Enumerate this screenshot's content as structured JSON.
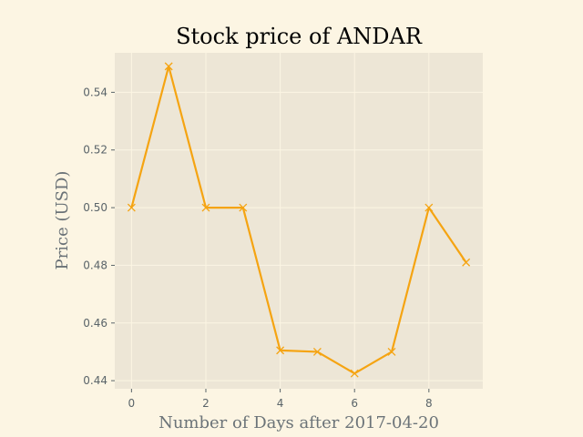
{
  "chart_data": {
    "type": "line",
    "title": "Stock price of ANDAR",
    "xlabel": "Number of Days after 2017-04-20",
    "ylabel": "Price (USD)",
    "x": [
      0,
      1,
      2,
      3,
      4,
      5,
      6,
      7,
      8,
      9
    ],
    "series": [
      {
        "values": [
          0.5,
          0.549,
          0.5,
          0.5,
          0.4505,
          0.45,
          0.4425,
          0.45,
          0.5,
          0.481
        ]
      }
    ],
    "xticks": [
      0,
      2,
      4,
      6,
      8
    ],
    "xtick_labels": [
      "0",
      "2",
      "4",
      "6",
      "8"
    ],
    "yticks": [
      0.44,
      0.46,
      0.48,
      0.5,
      0.52,
      0.54
    ],
    "ytick_labels": [
      "0.44",
      "0.46",
      "0.48",
      "0.50",
      "0.52",
      "0.54"
    ],
    "xlim": [
      -0.45,
      9.45
    ],
    "ylim": [
      0.4372,
      0.5537
    ],
    "grid": true,
    "legend": "none",
    "marker": "x",
    "colors": {
      "line": "#f5a412",
      "plot_background": "#ede6d6",
      "figure_background": "#fcf5e3",
      "grid": "#fcf5e3"
    }
  }
}
